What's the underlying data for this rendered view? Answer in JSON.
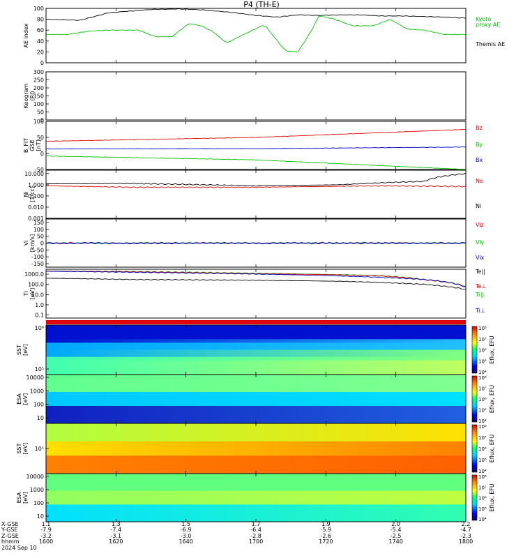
{
  "title": "P4 (TH-E)",
  "date_label": "2024 Sep 10",
  "colors": {
    "red": "#e00000",
    "green": "#00c000",
    "blue": "#0000c8",
    "black": "#000000"
  },
  "chart_data": [
    {
      "type": "line",
      "ylabel": "AE index",
      "yticks": [
        "0",
        "20",
        "40",
        "60",
        "80",
        "100"
      ],
      "ylim": [
        0,
        100
      ],
      "series": [
        {
          "name": "Themis AE",
          "color": "black",
          "x": [
            0,
            0.08,
            0.15,
            0.25,
            0.32,
            0.38,
            0.45,
            0.5,
            0.55,
            0.6,
            0.65,
            0.7,
            0.75,
            0.8,
            0.85,
            0.9,
            0.95,
            1
          ],
          "values": [
            80,
            78,
            92,
            98,
            99,
            97,
            92,
            87,
            84,
            88,
            87,
            88,
            88,
            86,
            86,
            85,
            84,
            82
          ]
        },
        {
          "name": "Kyoto proxy AE",
          "color": "green",
          "x": [
            0,
            0.05,
            0.1,
            0.15,
            0.22,
            0.26,
            0.3,
            0.34,
            0.37,
            0.4,
            0.43,
            0.46,
            0.52,
            0.57,
            0.6,
            0.63,
            0.65,
            0.68,
            0.73,
            0.78,
            0.82,
            0.86,
            0.9,
            0.95,
            1
          ],
          "values": [
            52,
            52,
            58,
            60,
            60,
            48,
            48,
            72,
            68,
            56,
            36,
            48,
            70,
            22,
            20,
            56,
            86,
            82,
            68,
            68,
            80,
            62,
            60,
            52,
            52
          ]
        }
      ],
      "legend": [
        "Kyoto",
        "proxy AE",
        "Themis AE"
      ]
    },
    {
      "type": "line",
      "ylabel": "Keogram",
      "ylabel2": "(RI)",
      "yticks": [
        "0",
        "50",
        "100",
        "150",
        "200",
        "250",
        "300"
      ],
      "ylim": [
        0,
        300
      ],
      "series": []
    },
    {
      "type": "line",
      "ylabel": "B_FIT",
      "ylabel2": "GSE",
      "ylabel3": "[nT]",
      "yticks": [
        "-50",
        "0",
        "50",
        "100"
      ],
      "ylim": [
        -50,
        100
      ],
      "series": [
        {
          "name": "Bz",
          "color": "red",
          "x": [
            0,
            0.5,
            1
          ],
          "values": [
            38,
            50,
            75
          ]
        },
        {
          "name": "By",
          "color": "blue",
          "x": [
            0,
            0.5,
            1
          ],
          "values": [
            14,
            15,
            20
          ]
        },
        {
          "name": "Bx",
          "color": "green",
          "x": [
            0,
            0.5,
            1
          ],
          "values": [
            -8,
            -20,
            -50
          ]
        }
      ],
      "legend": [
        "Bz",
        "By",
        "Bx"
      ]
    },
    {
      "type": "line",
      "ylabel": "Ni",
      "ylabel2": "[1/cc]",
      "yticks": [
        "0.001",
        "0.010",
        "0.100",
        "1.000",
        "10.000"
      ],
      "ylog": true,
      "ylim": [
        0.001,
        20
      ],
      "series": [
        {
          "name": "Ne",
          "color": "red",
          "x": [
            0,
            0.2,
            0.5,
            0.8,
            1
          ],
          "values": [
            0.8,
            0.6,
            0.6,
            0.8,
            0.7
          ]
        },
        {
          "name": "Ni",
          "color": "black",
          "x": [
            0,
            0.2,
            0.5,
            0.7,
            0.8,
            0.9,
            1
          ],
          "values": [
            1.2,
            1.3,
            0.8,
            1.0,
            1.5,
            2.0,
            10.0
          ]
        }
      ],
      "legend": [
        "Ne",
        "Ni"
      ]
    },
    {
      "type": "line",
      "ylabel": "Vi",
      "ylabel2": "[km/s]",
      "yticks": [
        "-150",
        "-100",
        "-50",
        "0",
        "50",
        "100",
        "150"
      ],
      "ylim": [
        -175,
        175
      ],
      "series": [
        {
          "name": "Viz",
          "color": "red",
          "x": [
            0,
            1
          ],
          "values": [
            0,
            0
          ]
        },
        {
          "name": "Viy",
          "color": "green",
          "x": [
            0,
            1
          ],
          "values": [
            0,
            0
          ]
        },
        {
          "name": "Vix",
          "color": "blue",
          "x": [
            0,
            1
          ],
          "values": [
            0,
            0
          ]
        }
      ],
      "legend": [
        "Viz",
        "Viy",
        "Vix"
      ]
    },
    {
      "type": "line",
      "ylabel": "Ti",
      "ylabel2": "[eV]",
      "yticks": [
        "0.1",
        "1.0",
        "10.0",
        "100.0",
        "1000.0"
      ],
      "ylog": true,
      "ylim": [
        0.05,
        3000
      ],
      "series": [
        {
          "name": "Te||",
          "color": "black",
          "x": [
            0,
            0.2,
            0.5,
            0.7,
            0.8,
            0.9,
            1
          ],
          "values": [
            400,
            300,
            250,
            200,
            150,
            100,
            30
          ]
        },
        {
          "name": "Ti||",
          "color": "green",
          "x": [
            0,
            0.2,
            0.5,
            0.7,
            0.8,
            0.9,
            1
          ],
          "values": [
            2000,
            1800,
            1200,
            900,
            700,
            300,
            60
          ]
        },
        {
          "name": "Te⊥",
          "color": "red",
          "x": [
            0,
            0.2,
            0.5,
            0.7,
            0.8,
            0.9,
            1
          ],
          "values": [
            2000,
            1700,
            1100,
            850,
            650,
            280,
            55
          ]
        },
        {
          "name": "Ti⊥",
          "color": "blue",
          "x": [
            0,
            0.9,
            1
          ],
          "values": [
            1900,
            300,
            50
          ]
        }
      ],
      "legend": [
        "Te||",
        "Te⊥",
        "Ti||",
        "Ti⊥"
      ]
    },
    {
      "type": "heatmap",
      "ylabel": "SST",
      "ylabel2": "[eV]",
      "yticks": [
        "10⁵",
        "10⁶"
      ],
      "cbar_label": "Eflux, EFU",
      "cbar_ticks": [
        "10⁴",
        "10⁵",
        "10⁶",
        "10⁷",
        "10⁸"
      ]
    },
    {
      "type": "heatmap",
      "ylabel": "ESA",
      "ylabel2": "[eV]",
      "yticks": [
        "10",
        "100",
        "1000",
        "10000"
      ],
      "cbar_label": "Eflux, EFU",
      "cbar_ticks": [
        "10⁴",
        "10⁵",
        "10⁶",
        "10⁷",
        "10⁸"
      ]
    },
    {
      "type": "heatmap",
      "ylabel": "SST",
      "ylabel2": "[eV]",
      "yticks": [
        "10⁵"
      ],
      "cbar_label": "Eflux, EFU",
      "cbar_ticks": [
        "10⁴",
        "10⁵",
        "10⁶",
        "10⁷",
        "10⁸"
      ]
    },
    {
      "type": "heatmap",
      "ylabel": "ESA",
      "ylabel2": "[eV]",
      "yticks": [
        "10",
        "100",
        "1000",
        "10000"
      ],
      "cbar_label": "Eflux, EFU",
      "cbar_ticks": [
        "10⁴",
        "10⁵",
        "10⁶",
        "10⁷",
        "10⁸"
      ]
    }
  ],
  "footer": {
    "labels": [
      "X-GSE",
      "Y-GSE",
      "Z-GSE",
      "hhmm",
      "2024 Sep 10"
    ],
    "rows": [
      [
        "1.1",
        "1.3",
        "1.5",
        "1.7",
        "1.9",
        "2.0",
        "2.2"
      ],
      [
        "-7.9",
        "-7.4",
        "-6.9",
        "-6.4",
        "-5.9",
        "-5.4",
        "-4.7"
      ],
      [
        "-3.2",
        "-3.1",
        "-3.0",
        "-2.8",
        "-2.6",
        "-2.5",
        "-2.3"
      ],
      [
        "1600",
        "1620",
        "1640",
        "1700",
        "1720",
        "1740",
        "1800"
      ]
    ]
  }
}
